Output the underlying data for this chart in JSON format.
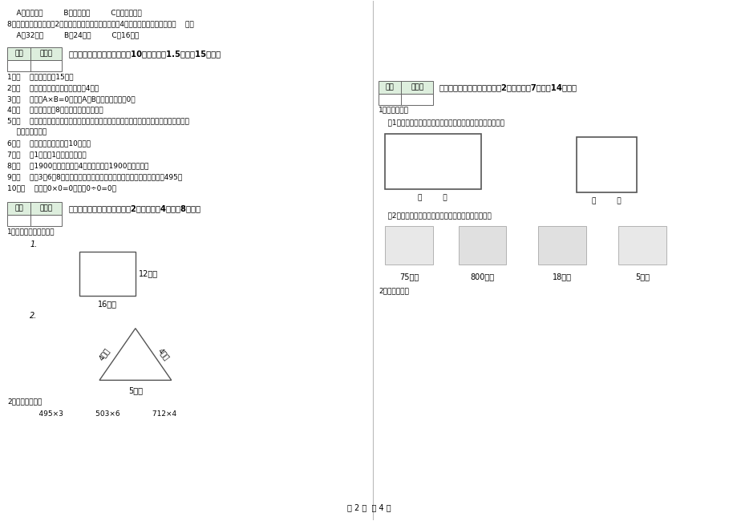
{
  "bg_color": "#ffffff",
  "page_label": "第 2 页  共 4 页",
  "top_left_lines": [
    "    A、开关抽屉         B、打开瓶盖         C、转动的风车",
    "8、一个正方形的边长是2厘米，现在将边长扩大到原来的4倍，现在正方形的周长是（    ）。",
    "    A、32厘米         B、24厘米         C、16厘米"
  ],
  "section3_header": "三、仔细推敲，正确判断（共10小题，每题1.5分，共15分）。",
  "section3_items": [
    "1、（    ）李老师身高15米。",
    "2、（    ）正方形的周长是它的边长的4倍。",
    "3、（    ）如果A×B=0，那么A和B中至少有一个是0。",
    "4、（    ）一个两位乘8，积一定也是两为数。",
    "5、（    ）用同一条铁丝先围成一个最大的正方形，再围成一个最大的长方形，长方形和正方",
    "    形的周长相等。",
    "6、（    ）小明家客厅面积是10公顷。",
    "7、（    ）1吨铁与1吨棉花一样重。",
    "8、（    ）1900年的年份数是4的倍数，所以1900年是闰年。",
    "9、（    ）用3、6、8这三个数字组成的最大三位数与最小三位数，它们相差495。",
    "10、（    ）因为0×0=0，所以0÷0=0。"
  ],
  "section4_header": "四、看清题目，细心计算（共2小题，每题4分，共8分）。",
  "section4_item1_label": "1、求下面图形的周长。",
  "section4_sub1": "1.",
  "section4_sub2": "2.",
  "section4_item2_label": "2、估算并计算。",
  "section4_calcs": "    495×3              503×6              712×4",
  "section5_header": "五、认真思考，综合能力（共2小题，每题7分，共14分）。",
  "section5_item1": "1、实践操作：",
  "section5_sub1": "    （1）、量出下面各图形中每条边的长度。（以毫米为单位）",
  "section5_sub2": "    （2）、把每小时行的路程与合适的出行方式连起来。",
  "section5_distances": [
    "75千米",
    "800千米",
    "18千米",
    "5千米"
  ],
  "section5_item2": "2、看图填空："
}
